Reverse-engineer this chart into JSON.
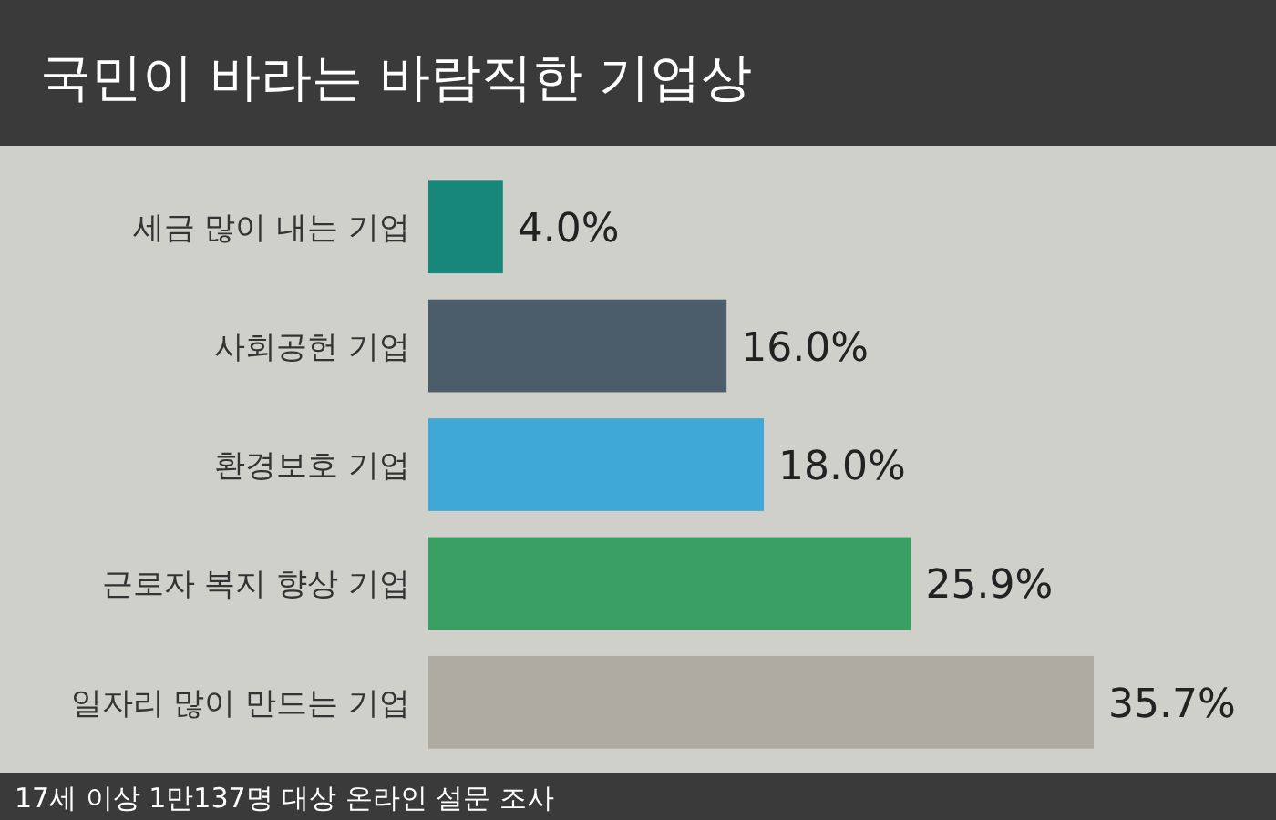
{
  "chart_data": {
    "type": "bar",
    "orientation": "horizontal",
    "title": "국민이 바라는 바람직한 기업상",
    "categories": [
      "세금 많이 내는 기업",
      "사회공헌 기업",
      "환경보호 기업",
      "근로자 복지 향상 기업",
      "일자리 많이 만드는 기업"
    ],
    "values": [
      4.0,
      16.0,
      18.0,
      25.9,
      35.7
    ],
    "colors": [
      "#17877a",
      "#4b5d6a",
      "#3fa8d6",
      "#3a9f62",
      "#aeaba3"
    ],
    "value_labels": [
      "4.0%",
      "16.0%",
      "18.0%",
      "25.9%",
      "35.7%"
    ],
    "annotations": [
      "17세 이상 1만137명 대상 온라인 설문 조사"
    ]
  }
}
